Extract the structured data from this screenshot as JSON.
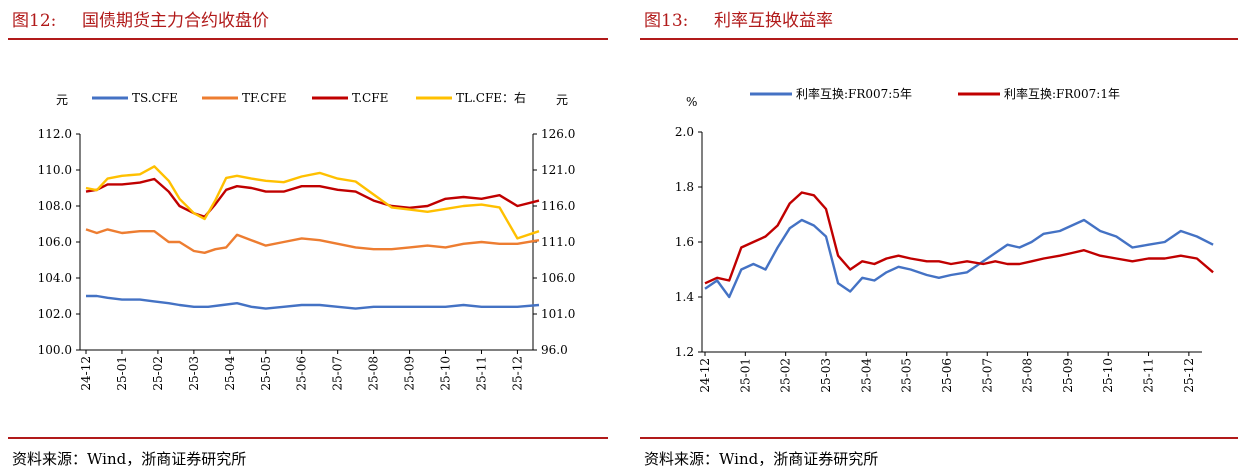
{
  "figures": [
    {
      "number": "图12:",
      "title": "国债期货主力合约收盘价",
      "source": "资料来源：Wind，浙商证券研究所"
    },
    {
      "number": "图13:",
      "title": "利率互换收益率",
      "source": "资料来源：Wind，浙商证券研究所"
    }
  ],
  "colors": {
    "accent": "#b11a1a",
    "ts": "#4472c4",
    "tf": "#ed7d31",
    "t": "#c00000",
    "tl": "#ffc000",
    "irs5y": "#4472c4",
    "irs1y": "#c00000"
  },
  "chart_data": [
    {
      "type": "line",
      "title": "",
      "y_left_label": "元",
      "y_right_label": "元",
      "ylim_left": [
        100,
        112
      ],
      "ylim_right": [
        96,
        126
      ],
      "yticks_left": [
        "100.0",
        "102.0",
        "104.0",
        "106.0",
        "108.0",
        "110.0",
        "112.0"
      ],
      "yticks_right": [
        "96.0",
        "101.0",
        "106.0",
        "111.0",
        "116.0",
        "121.0",
        "126.0"
      ],
      "x_ticks": [
        "24-12",
        "25-01",
        "25-02",
        "25-03",
        "25-04",
        "25-05",
        "25-06",
        "25-07",
        "25-08",
        "25-09",
        "25-10",
        "25-11",
        "25-12"
      ],
      "legend_position": "top",
      "series": [
        {
          "name": "TS.CFE",
          "axis": "left",
          "color": "#4472c4",
          "x": [
            0,
            0.3,
            0.6,
            1,
            1.5,
            1.9,
            2.3,
            2.6,
            3,
            3.4,
            3.8,
            4.2,
            4.6,
            5,
            5.5,
            6,
            6.5,
            7,
            7.5,
            8,
            8.5,
            9,
            9.5,
            10,
            10.5,
            11,
            11.5,
            12,
            12.6
          ],
          "values": [
            103.0,
            103.0,
            102.9,
            102.8,
            102.8,
            102.7,
            102.6,
            102.5,
            102.4,
            102.4,
            102.5,
            102.6,
            102.4,
            102.3,
            102.4,
            102.5,
            102.5,
            102.4,
            102.3,
            102.4,
            102.4,
            102.4,
            102.4,
            102.4,
            102.5,
            102.4,
            102.4,
            102.4,
            102.5
          ]
        },
        {
          "name": "TF.CFE",
          "axis": "left",
          "color": "#ed7d31",
          "x": [
            0,
            0.3,
            0.6,
            1,
            1.5,
            1.9,
            2.3,
            2.6,
            3,
            3.3,
            3.6,
            3.9,
            4.2,
            4.6,
            5,
            5.5,
            6,
            6.5,
            7,
            7.5,
            8,
            8.5,
            9,
            9.5,
            10,
            10.5,
            11,
            11.5,
            12,
            12.6
          ],
          "values": [
            106.7,
            106.5,
            106.7,
            106.5,
            106.6,
            106.6,
            106.0,
            106.0,
            105.5,
            105.4,
            105.6,
            105.7,
            106.4,
            106.1,
            105.8,
            106.0,
            106.2,
            106.1,
            105.9,
            105.7,
            105.6,
            105.6,
            105.7,
            105.8,
            105.7,
            105.9,
            106.0,
            105.9,
            105.9,
            106.1
          ]
        },
        {
          "name": "T.CFE",
          "axis": "left",
          "color": "#c00000",
          "x": [
            0,
            0.3,
            0.6,
            1,
            1.5,
            1.9,
            2.3,
            2.6,
            3,
            3.3,
            3.6,
            3.9,
            4.2,
            4.6,
            5,
            5.5,
            6,
            6.5,
            7,
            7.5,
            8,
            8.5,
            9,
            9.5,
            10,
            10.5,
            11,
            11.5,
            12,
            12.6
          ],
          "values": [
            108.8,
            108.9,
            109.2,
            109.2,
            109.3,
            109.5,
            108.8,
            108.0,
            107.6,
            107.4,
            108.1,
            108.9,
            109.1,
            109.0,
            108.8,
            108.8,
            109.1,
            109.1,
            108.9,
            108.8,
            108.3,
            108.0,
            107.9,
            108.0,
            108.4,
            108.5,
            108.4,
            108.6,
            108.0,
            108.3
          ]
        },
        {
          "name": "TL.CFE：右",
          "axis": "right",
          "color": "#ffc000",
          "x": [
            0,
            0.3,
            0.6,
            1,
            1.5,
            1.9,
            2.3,
            2.6,
            3,
            3.3,
            3.6,
            3.9,
            4.2,
            4.6,
            5,
            5.5,
            6,
            6.5,
            7,
            7.5,
            8,
            8.5,
            9,
            9.5,
            10,
            10.5,
            11,
            11.5,
            12,
            12.6
          ],
          "values": [
            118.5,
            118.2,
            119.8,
            120.2,
            120.4,
            121.5,
            119.5,
            117.0,
            115.0,
            114.2,
            116.8,
            119.9,
            120.2,
            119.8,
            119.5,
            119.3,
            120.1,
            120.6,
            119.8,
            119.4,
            117.6,
            115.8,
            115.5,
            115.2,
            115.6,
            116.0,
            116.2,
            115.8,
            111.5,
            112.5
          ]
        }
      ]
    },
    {
      "type": "line",
      "title": "",
      "y_left_label": "%",
      "ylim": [
        1.2,
        2.0
      ],
      "yticks": [
        "1.2",
        "1.4",
        "1.6",
        "1.8",
        "2.0"
      ],
      "x_ticks": [
        "24-12",
        "25-01",
        "25-02",
        "25-03",
        "25-04",
        "25-05",
        "25-06",
        "25-07",
        "25-08",
        "25-09",
        "25-10",
        "25-11",
        "25-12"
      ],
      "legend_position": "top",
      "series": [
        {
          "name": "利率互换:FR007:5年",
          "color": "#4472c4",
          "x": [
            0,
            0.3,
            0.6,
            0.9,
            1.2,
            1.5,
            1.8,
            2.1,
            2.4,
            2.7,
            3,
            3.3,
            3.6,
            3.9,
            4.2,
            4.5,
            4.8,
            5.1,
            5.5,
            5.8,
            6.1,
            6.5,
            6.9,
            7.2,
            7.5,
            7.8,
            8.1,
            8.4,
            8.8,
            9.1,
            9.4,
            9.8,
            10.2,
            10.6,
            11,
            11.4,
            11.8,
            12.2,
            12.6
          ],
          "values": [
            1.43,
            1.46,
            1.4,
            1.5,
            1.52,
            1.5,
            1.58,
            1.65,
            1.68,
            1.66,
            1.62,
            1.45,
            1.42,
            1.47,
            1.46,
            1.49,
            1.51,
            1.5,
            1.48,
            1.47,
            1.48,
            1.49,
            1.53,
            1.56,
            1.59,
            1.58,
            1.6,
            1.63,
            1.64,
            1.66,
            1.68,
            1.64,
            1.62,
            1.58,
            1.59,
            1.6,
            1.64,
            1.62,
            1.59
          ]
        },
        {
          "name": "利率互换:FR007:1年",
          "color": "#c00000",
          "x": [
            0,
            0.3,
            0.6,
            0.9,
            1.2,
            1.5,
            1.8,
            2.1,
            2.4,
            2.7,
            3,
            3.3,
            3.6,
            3.9,
            4.2,
            4.5,
            4.8,
            5.1,
            5.5,
            5.8,
            6.1,
            6.5,
            6.9,
            7.2,
            7.5,
            7.8,
            8.1,
            8.4,
            8.8,
            9.1,
            9.4,
            9.8,
            10.2,
            10.6,
            11,
            11.4,
            11.8,
            12.2,
            12.6
          ],
          "values": [
            1.45,
            1.47,
            1.46,
            1.58,
            1.6,
            1.62,
            1.66,
            1.74,
            1.78,
            1.77,
            1.72,
            1.55,
            1.5,
            1.53,
            1.52,
            1.54,
            1.55,
            1.54,
            1.53,
            1.53,
            1.52,
            1.53,
            1.52,
            1.53,
            1.52,
            1.52,
            1.53,
            1.54,
            1.55,
            1.56,
            1.57,
            1.55,
            1.54,
            1.53,
            1.54,
            1.54,
            1.55,
            1.54,
            1.49
          ]
        }
      ]
    }
  ]
}
